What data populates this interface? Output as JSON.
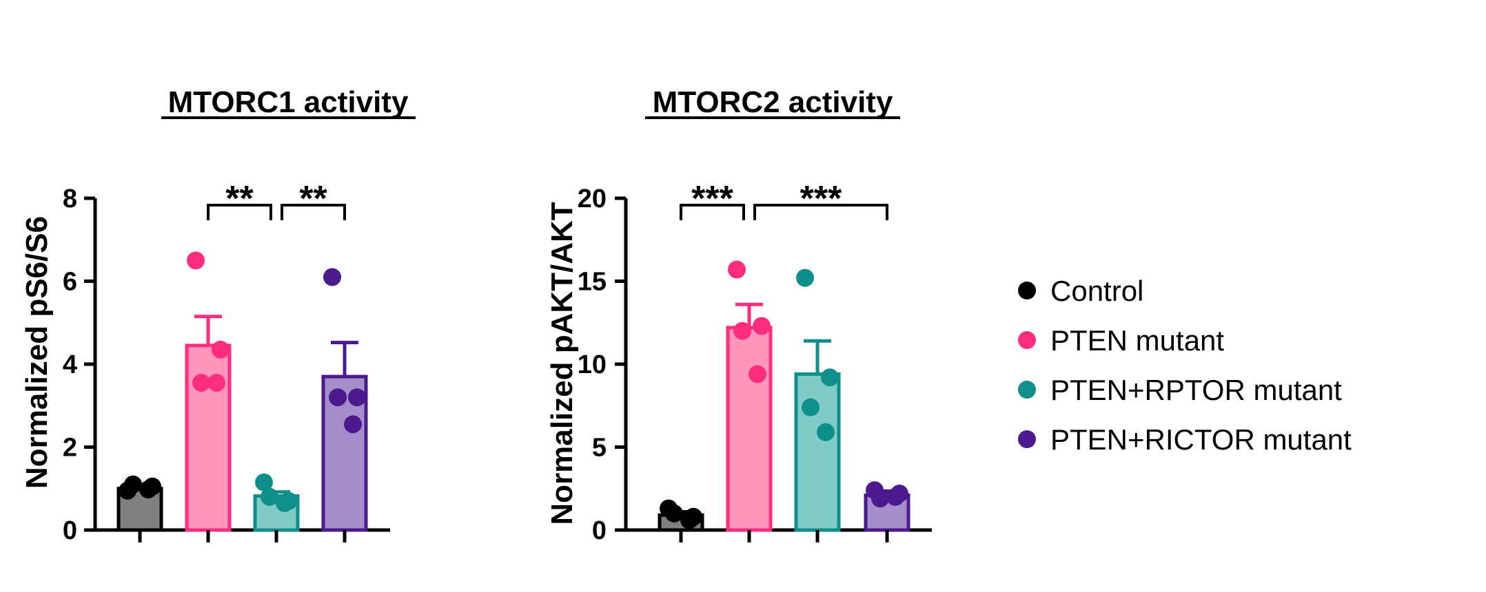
{
  "legend": {
    "items": [
      {
        "label": "Control",
        "color": "#000000"
      },
      {
        "label": "PTEN mutant",
        "color": "#ff2d7e"
      },
      {
        "label": "PTEN+RPTOR mutant",
        "color": "#0e8f8b"
      },
      {
        "label": "PTEN+RICTOR mutant",
        "color": "#4b1a8f"
      }
    ]
  },
  "chart_data": [
    {
      "type": "bar",
      "title": "MTORC1 activity",
      "ylabel": "Normalized pS6/S6",
      "xlabel": "",
      "ylim": [
        0,
        8
      ],
      "yticks": [
        0,
        2,
        4,
        6,
        8
      ],
      "ytick_labels": [
        "0",
        "2",
        "4",
        "6",
        "8"
      ],
      "categories": [
        "Control",
        "PTEN mutant",
        "PTEN+RPTOR mutant",
        "PTEN+RICTOR mutant"
      ],
      "values": [
        1.0,
        4.45,
        0.82,
        3.7
      ],
      "sem": [
        0.05,
        0.7,
        0.1,
        0.82
      ],
      "points": [
        [
          0.95,
          1.05,
          1.1,
          0.98
        ],
        [
          6.5,
          4.35,
          3.55,
          3.55
        ],
        [
          1.15,
          0.7,
          0.8,
          0.65
        ],
        [
          6.1,
          3.2,
          3.2,
          2.55
        ]
      ],
      "bar_colors": [
        "#808080",
        "#ff96bc",
        "#80cbc6",
        "#a58dc9"
      ],
      "edge_colors": [
        "#000000",
        "#ff2d7e",
        "#0e8f8b",
        "#4b1a8f"
      ],
      "significance": [
        {
          "from": 1,
          "to": 2,
          "label": "**"
        },
        {
          "from": 2,
          "to": 3,
          "label": "**"
        }
      ]
    },
    {
      "type": "bar",
      "title": "MTORC2 activity",
      "ylabel": "Normalized pAKT/AKT",
      "xlabel": "",
      "ylim": [
        0,
        20
      ],
      "yticks": [
        0,
        5,
        10,
        15,
        20
      ],
      "ytick_labels": [
        "0",
        "5",
        "10",
        "15",
        "20"
      ],
      "categories": [
        "Control",
        "PTEN mutant",
        "PTEN+RPTOR mutant",
        "PTEN+RICTOR mutant"
      ],
      "values": [
        0.9,
        12.2,
        9.4,
        2.1
      ],
      "sem": [
        0.2,
        1.4,
        2.0,
        0.25
      ],
      "points": [
        [
          1.3,
          0.8,
          1.0,
          0.6
        ],
        [
          15.7,
          12.3,
          12.0,
          9.4
        ],
        [
          15.2,
          9.2,
          7.4,
          5.9
        ],
        [
          2.4,
          2.2,
          1.9,
          2.0
        ]
      ],
      "bar_colors": [
        "#808080",
        "#ff96bc",
        "#80cbc6",
        "#a58dc9"
      ],
      "edge_colors": [
        "#000000",
        "#ff2d7e",
        "#0e8f8b",
        "#4b1a8f"
      ],
      "significance": [
        {
          "from": 0,
          "to": 1,
          "label": "***"
        },
        {
          "from": 1,
          "to": 3,
          "label": "***"
        }
      ]
    }
  ]
}
